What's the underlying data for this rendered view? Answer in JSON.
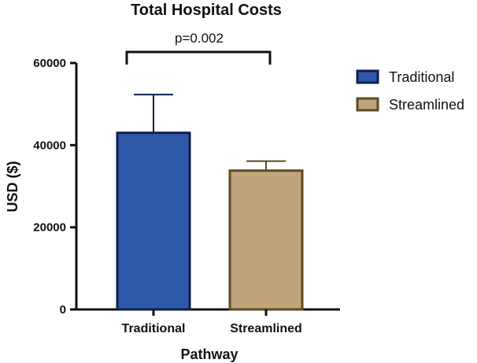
{
  "chart_data": {
    "type": "bar",
    "title": "Total Hospital Costs",
    "xlabel": "Pathway",
    "ylabel": "USD ($)",
    "ylim": [
      0,
      60000
    ],
    "yticks": [
      0,
      20000,
      40000,
      60000
    ],
    "categories": [
      "Traditional",
      "Streamlined"
    ],
    "values": [
      43000,
      33800
    ],
    "error_upper": [
      52300,
      36100
    ],
    "colors": {
      "Traditional": "#2E58A8",
      "Streamlined": "#BFA37A"
    },
    "edge_colors": {
      "Traditional": "#0D1F4A",
      "Streamlined": "#5E4A22"
    },
    "legend": [
      "Traditional",
      "Streamlined"
    ],
    "legend_position": "top-right",
    "annotation": "p=0.002"
  }
}
